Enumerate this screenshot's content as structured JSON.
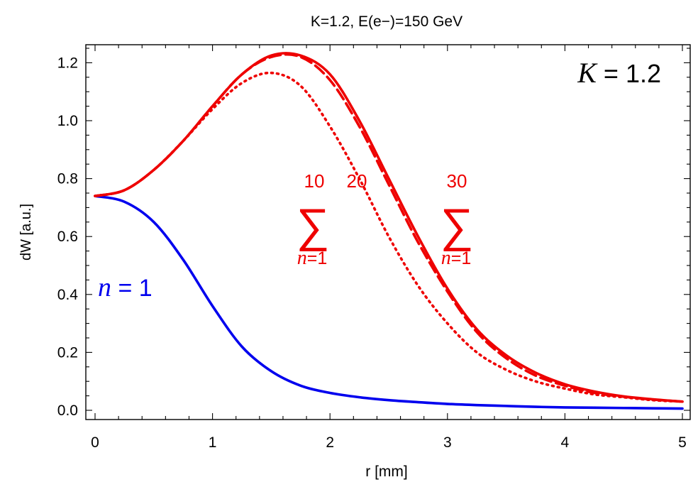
{
  "chart_data": {
    "type": "line",
    "title": "K=1.2,  E(e−)=150 GeV",
    "xlabel": "r [mm]",
    "ylabel": "dW [a.u.]",
    "xlim": [
      0,
      5
    ],
    "ylim": [
      0,
      1.25
    ],
    "x_ticks": [
      0,
      1,
      2,
      3,
      4,
      5
    ],
    "x_tick_labels": [
      "0",
      "1",
      "2",
      "3",
      "4",
      "5"
    ],
    "y_ticks": [
      0.0,
      0.2,
      0.4,
      0.6,
      0.8,
      1.0,
      1.2
    ],
    "y_tick_labels": [
      "0.0",
      "0.2",
      "0.4",
      "0.6",
      "0.8",
      "1.0",
      "1.2"
    ],
    "grid": false,
    "legend": "none",
    "x": [
      0,
      0.25,
      0.5,
      0.75,
      1.0,
      1.25,
      1.5,
      1.75,
      2.0,
      2.25,
      2.5,
      2.75,
      3.0,
      3.25,
      3.5,
      3.75,
      4.0,
      4.25,
      4.5,
      4.75,
      5.0
    ],
    "series": [
      {
        "key": "n1",
        "color": "#0000ee",
        "dash": "solid",
        "values": [
          0.74,
          0.72,
          0.65,
          0.52,
          0.36,
          0.22,
          0.135,
          0.085,
          0.06,
          0.045,
          0.035,
          0.028,
          0.022,
          0.018,
          0.015,
          0.012,
          0.01,
          0.009,
          0.008,
          0.007,
          0.006
        ]
      },
      {
        "key": "sum10",
        "color": "#ee0000",
        "dash": "dotted",
        "values": [
          0.74,
          0.76,
          0.83,
          0.93,
          1.04,
          1.13,
          1.165,
          1.12,
          0.98,
          0.8,
          0.6,
          0.43,
          0.3,
          0.2,
          0.14,
          0.1,
          0.075,
          0.055,
          0.045,
          0.035,
          0.03
        ]
      },
      {
        "key": "sum20",
        "color": "#ee0000",
        "dash": "dashed",
        "values": [
          0.74,
          0.76,
          0.83,
          0.93,
          1.05,
          1.16,
          1.22,
          1.22,
          1.14,
          0.98,
          0.78,
          0.58,
          0.41,
          0.27,
          0.18,
          0.12,
          0.085,
          0.06,
          0.047,
          0.037,
          0.03
        ]
      },
      {
        "key": "sum30",
        "color": "#ee0000",
        "dash": "solid",
        "values": [
          0.74,
          0.76,
          0.83,
          0.93,
          1.05,
          1.16,
          1.225,
          1.225,
          1.16,
          1.0,
          0.8,
          0.6,
          0.42,
          0.28,
          0.19,
          0.13,
          0.09,
          0.065,
          0.048,
          0.038,
          0.03
        ]
      }
    ],
    "annotations": {
      "k_label": {
        "var": "K",
        "rest": " = 1.2"
      },
      "n1_label": {
        "var": "n",
        "rest": " = 1",
        "color": "#0000ee"
      },
      "sum10": {
        "upper": "10",
        "lower_var": "n",
        "lower_rest": "=1",
        "color": "#ee0000"
      },
      "sum20": {
        "upper": "20",
        "color": "#ee0000"
      },
      "sum30": {
        "upper": "30",
        "lower_var": "n",
        "lower_rest": "=1",
        "color": "#ee0000"
      },
      "sigma": "∑"
    }
  }
}
